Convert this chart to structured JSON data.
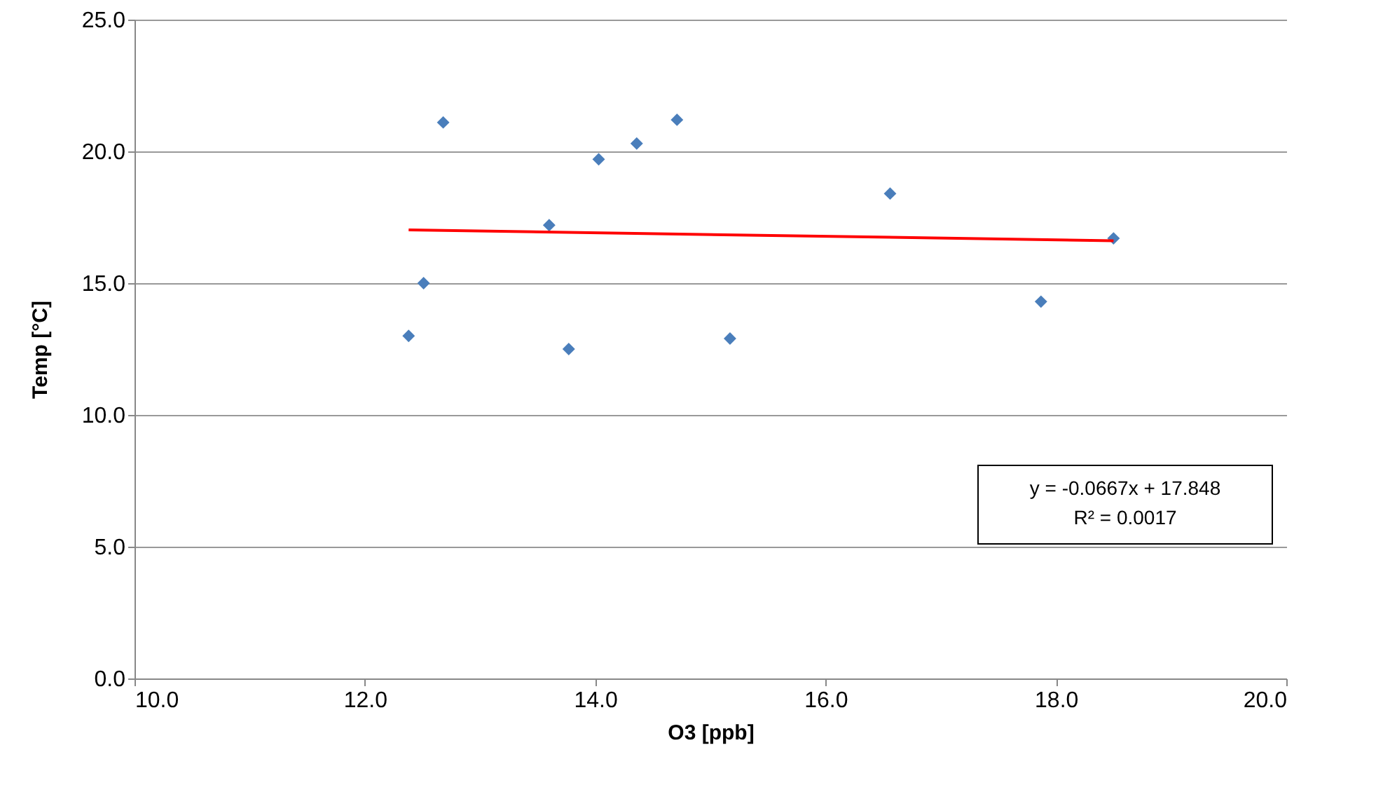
{
  "chart_data": {
    "type": "scatter",
    "xlabel": "O3 [ppb]",
    "ylabel": "Temp [°C]",
    "xlim": [
      10,
      20
    ],
    "ylim": [
      0,
      25
    ],
    "xticks": [
      {
        "value": 10,
        "label": "10.0"
      },
      {
        "value": 12,
        "label": "12.0"
      },
      {
        "value": 14,
        "label": "14.0"
      },
      {
        "value": 16,
        "label": "16.0"
      },
      {
        "value": 18,
        "label": "18.0"
      },
      {
        "value": 20,
        "label": "20.0"
      }
    ],
    "yticks": [
      {
        "value": 0,
        "label": "0.0"
      },
      {
        "value": 5,
        "label": "5.0"
      },
      {
        "value": 10,
        "label": "10.0"
      },
      {
        "value": 15,
        "label": "15.0"
      },
      {
        "value": 20,
        "label": "20.0"
      },
      {
        "value": 25,
        "label": "25.0"
      }
    ],
    "grid": "y",
    "marker": "diamond",
    "series": [
      {
        "color": "#4a7ebb",
        "x": [
          12.38,
          12.51,
          12.68,
          13.6,
          13.77,
          14.03,
          14.36,
          14.71,
          15.17,
          16.56,
          17.87,
          18.5
        ],
        "values": [
          13.0,
          15.0,
          21.1,
          17.2,
          12.5,
          19.7,
          20.3,
          21.2,
          12.9,
          18.4,
          14.3,
          16.7
        ]
      },
      {
        "type": "line",
        "marker": "none",
        "color": "#ff0000",
        "x": [
          12.38,
          18.5
        ],
        "values": [
          17.02,
          16.61
        ]
      }
    ],
    "annotations": [
      "y = -0.0667x  + 17.848",
      "R² = 0.0017"
    ]
  }
}
